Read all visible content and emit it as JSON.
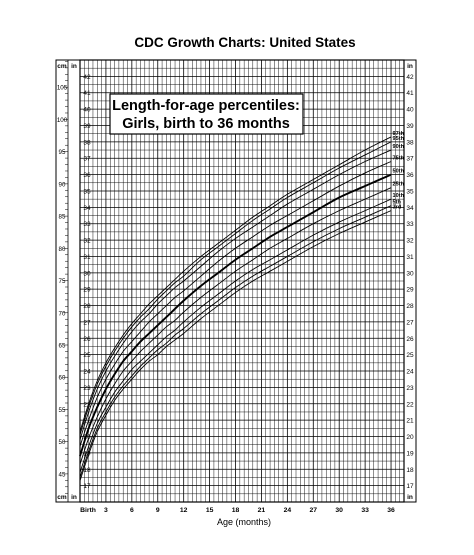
{
  "header": {
    "title": "CDC Growth Charts: United States"
  },
  "chart_data": {
    "type": "line",
    "title": "Length-for-age percentiles:",
    "subtitle": "Girls, birth to 36 months",
    "xlabel": "Age (months)",
    "x_tick_labels": [
      "Birth",
      "3",
      "6",
      "9",
      "12",
      "15",
      "18",
      "21",
      "24",
      "27",
      "30",
      "33",
      "36"
    ],
    "x_ticks": [
      0,
      3,
      6,
      9,
      12,
      15,
      18,
      21,
      24,
      27,
      30,
      33,
      36
    ],
    "xlim": [
      0,
      37.5
    ],
    "ylim_in": [
      16,
      43
    ],
    "cm_unit_label": "cm",
    "in_unit_label": "in",
    "cm_ticks": [
      45,
      50,
      55,
      60,
      65,
      70,
      75,
      80,
      85,
      90,
      95,
      100,
      105
    ],
    "in_ticks": [
      17,
      18,
      19,
      20,
      21,
      22,
      23,
      24,
      25,
      26,
      27,
      28,
      29,
      30,
      31,
      32,
      33,
      34,
      35,
      36,
      37,
      38,
      39,
      40,
      41,
      42
    ],
    "grid": true,
    "series_x": [
      0,
      1,
      2,
      3,
      4,
      5,
      6,
      7,
      8,
      9,
      10,
      11,
      12,
      14,
      16,
      18,
      20,
      22,
      24,
      27,
      30,
      33,
      36
    ],
    "series": [
      {
        "name": "97th",
        "values": [
          20.3,
          22.0,
          23.4,
          24.5,
          25.4,
          26.2,
          26.9,
          27.5,
          28.1,
          28.6,
          29.1,
          29.6,
          30.1,
          31.0,
          31.8,
          32.6,
          33.4,
          34.1,
          34.8,
          35.7,
          36.6,
          37.5,
          38.3
        ]
      },
      {
        "name": "95th",
        "values": [
          20.1,
          21.8,
          23.2,
          24.3,
          25.2,
          26.0,
          26.7,
          27.3,
          27.8,
          28.4,
          28.9,
          29.4,
          29.8,
          30.8,
          31.6,
          32.4,
          33.2,
          33.9,
          34.6,
          35.5,
          36.4,
          37.2,
          38.0
        ]
      },
      {
        "name": "90th",
        "values": [
          19.8,
          21.5,
          22.9,
          24.0,
          24.9,
          25.7,
          26.4,
          27.0,
          27.5,
          28.1,
          28.6,
          29.1,
          29.5,
          30.4,
          31.3,
          32.1,
          32.8,
          33.5,
          34.2,
          35.1,
          36.0,
          36.8,
          37.5
        ]
      },
      {
        "name": "75th",
        "values": [
          19.4,
          21.0,
          22.4,
          23.5,
          24.4,
          25.2,
          25.8,
          26.4,
          27.0,
          27.5,
          28.0,
          28.5,
          28.9,
          29.8,
          30.7,
          31.5,
          32.2,
          32.9,
          33.5,
          34.4,
          35.3,
          36.1,
          36.8
        ]
      },
      {
        "name": "50th",
        "values": [
          18.8,
          20.5,
          21.8,
          22.9,
          23.8,
          24.6,
          25.2,
          25.8,
          26.3,
          26.8,
          27.3,
          27.8,
          28.3,
          29.2,
          30.0,
          30.8,
          31.5,
          32.2,
          32.8,
          33.7,
          34.6,
          35.3,
          36.0
        ]
      },
      {
        "name": "25th",
        "values": [
          18.3,
          19.9,
          21.2,
          22.3,
          23.2,
          24.0,
          24.6,
          25.2,
          25.7,
          26.2,
          26.7,
          27.1,
          27.6,
          28.5,
          29.3,
          30.1,
          30.8,
          31.5,
          32.1,
          33.0,
          33.8,
          34.5,
          35.2
        ]
      },
      {
        "name": "10th",
        "values": [
          17.8,
          19.4,
          20.8,
          21.8,
          22.7,
          23.4,
          24.1,
          24.6,
          25.1,
          25.6,
          26.1,
          26.5,
          27.0,
          27.9,
          28.7,
          29.5,
          30.2,
          30.8,
          31.4,
          32.3,
          33.1,
          33.8,
          34.5
        ]
      },
      {
        "name": "5th",
        "values": [
          17.5,
          19.1,
          20.5,
          21.5,
          22.4,
          23.1,
          23.7,
          24.3,
          24.8,
          25.3,
          25.7,
          26.2,
          26.6,
          27.5,
          28.3,
          29.1,
          29.8,
          30.4,
          31.0,
          31.9,
          32.7,
          33.4,
          34.1
        ]
      },
      {
        "name": "3rd",
        "values": [
          17.3,
          18.9,
          20.3,
          21.3,
          22.2,
          22.9,
          23.5,
          24.1,
          24.6,
          25.0,
          25.5,
          25.9,
          26.3,
          27.2,
          28.0,
          28.8,
          29.5,
          30.1,
          30.7,
          31.6,
          32.4,
          33.1,
          33.8
        ]
      }
    ]
  }
}
